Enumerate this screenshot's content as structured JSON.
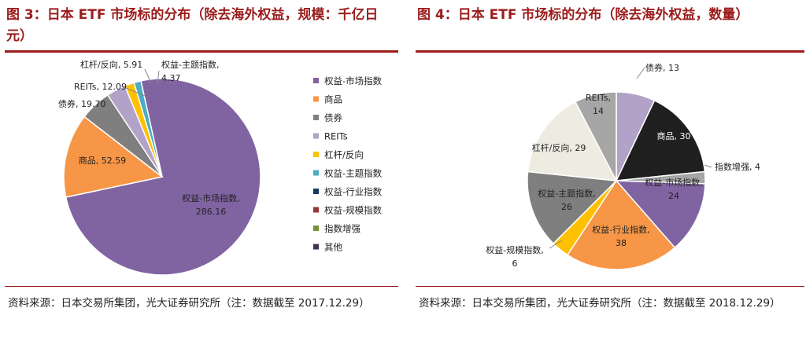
{
  "left": {
    "title": "图 3：日本 ETF 市场标的分布（除去海外权益，规模：千亿日元）",
    "source": "资料来源：日本交易所集团，光大证券研究所（注：数据截至 2017.12.29）"
  },
  "right": {
    "title": "图 4：日本 ETF 市场标的分布（除去海外权益，数量）",
    "source": "资料来源：日本交易所集团，光大证券研究所（注：数据截至 2018.12.29）"
  },
  "colors": {
    "title_red": "#9b1c1c",
    "equity_market_index": "#8064a2",
    "commodity": "#f79646",
    "bond": "#7f7f7f",
    "reits": "#b3a2c7",
    "leveraged_inverse": "#ffc000",
    "equity_thematic": "#4bacc6",
    "equity_industry": "#17375e",
    "equity_size": "#953735",
    "index_enhanced": "#77933c",
    "other": "#403152"
  },
  "chart_data": [
    {
      "type": "pie",
      "title": "",
      "slices": [
        {
          "label": "权益-市场指数",
          "value": 286.16,
          "color": "#8064a2"
        },
        {
          "label": "商品",
          "value": 52.59,
          "color": "#f79646"
        },
        {
          "label": "债券",
          "value": 19.7,
          "color": "#7f7f7f"
        },
        {
          "label": "REITs",
          "value": 12.09,
          "color": "#b3a2c7"
        },
        {
          "label": "杠杆/反向",
          "value": 5.91,
          "color": "#ffc000"
        },
        {
          "label": "权益-主题指数",
          "value": 4.37,
          "color": "#4bacc6"
        }
      ],
      "data_labels": [
        {
          "line1": "权益-市场指数,",
          "line2": "286.16"
        },
        {
          "line1": "商品, 52.59",
          "line2": ""
        },
        {
          "line1": "债券, 19.70",
          "line2": ""
        },
        {
          "line1": "REITs, 12.09",
          "line2": ""
        },
        {
          "line1": "杠杆/反向, 5.91",
          "line2": ""
        },
        {
          "line1": "权益-主题指数,",
          "line2": "4.37"
        }
      ],
      "legend": {
        "position": "right",
        "entries": [
          {
            "label": "权益-市场指数",
            "color": "#8064a2"
          },
          {
            "label": "商品",
            "color": "#f79646"
          },
          {
            "label": "债券",
            "color": "#7f7f7f"
          },
          {
            "label": "REITs",
            "color": "#b3a2c7"
          },
          {
            "label": "杠杆/反向",
            "color": "#ffc000"
          },
          {
            "label": "权益-主题指数",
            "color": "#4bacc6"
          },
          {
            "label": "权益-行业指数",
            "color": "#17375e"
          },
          {
            "label": "权益-规模指数",
            "color": "#953735"
          },
          {
            "label": "指数增强",
            "color": "#77933c"
          },
          {
            "label": "其他",
            "color": "#403152"
          }
        ]
      }
    },
    {
      "type": "pie",
      "title": "",
      "slices": [
        {
          "label": "债券",
          "value": 13,
          "color": "#b3a2c7"
        },
        {
          "label": "商品",
          "value": 30,
          "color": "#1f1f1f"
        },
        {
          "label": "指数增强",
          "value": 4,
          "color": "#a6a6a6"
        },
        {
          "label": "权益-市场指数",
          "value": 24,
          "color": "#8064a2"
        },
        {
          "label": "权益-行业指数",
          "value": 38,
          "color": "#f79646"
        },
        {
          "label": "权益-规模指数",
          "value": 6,
          "color": "#ffc000"
        },
        {
          "label": "权益-主题指数",
          "value": 26,
          "color": "#7f7f7f"
        },
        {
          "label": "杠杆/反向",
          "value": 29,
          "color": "#eeece1"
        },
        {
          "label": "REITs",
          "value": 14,
          "color": "#a6a6a6"
        }
      ],
      "data_labels": [
        {
          "line1": "债券, 13",
          "line2": ""
        },
        {
          "line1": "商品, 30",
          "line2": ""
        },
        {
          "line1": "指数增强, 4",
          "line2": ""
        },
        {
          "line1": "权益-市场指数,",
          "line2": "24"
        },
        {
          "line1": "权益-行业指数,",
          "line2": "38"
        },
        {
          "line1": "权益-规模指数,",
          "line2": "6"
        },
        {
          "line1": "权益-主题指数,",
          "line2": "26"
        },
        {
          "line1": "杠杆/反向, 29",
          "line2": ""
        },
        {
          "line1": "REITs,",
          "line2": "14"
        }
      ]
    }
  ]
}
